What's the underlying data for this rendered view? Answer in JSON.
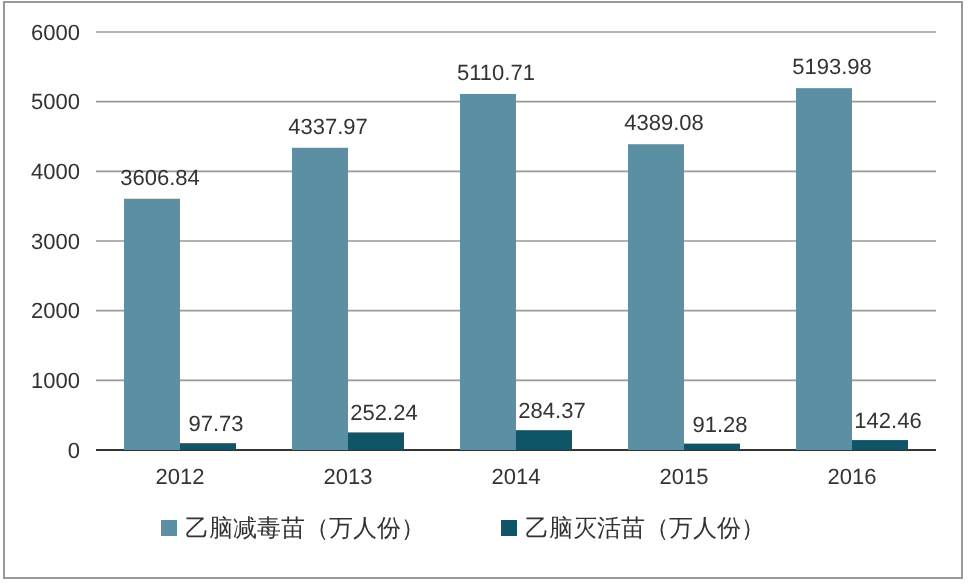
{
  "chart_data": {
    "type": "bar",
    "categories": [
      "2012",
      "2013",
      "2014",
      "2015",
      "2016"
    ],
    "series": [
      {
        "name": "乙脑减毒苗（万人份）",
        "color": "#5b8fa3",
        "values": [
          3606.84,
          4337.97,
          5110.71,
          4389.08,
          5193.98
        ]
      },
      {
        "name": "乙脑灭活苗（万人份）",
        "color": "#0e5567",
        "values": [
          97.73,
          252.24,
          284.37,
          91.28,
          142.46
        ]
      }
    ],
    "ylim": [
      0,
      6000
    ],
    "yticks": [
      0,
      1000,
      2000,
      3000,
      4000,
      5000,
      6000
    ],
    "grid": "y",
    "legend": "bottom",
    "data_labels": true
  }
}
